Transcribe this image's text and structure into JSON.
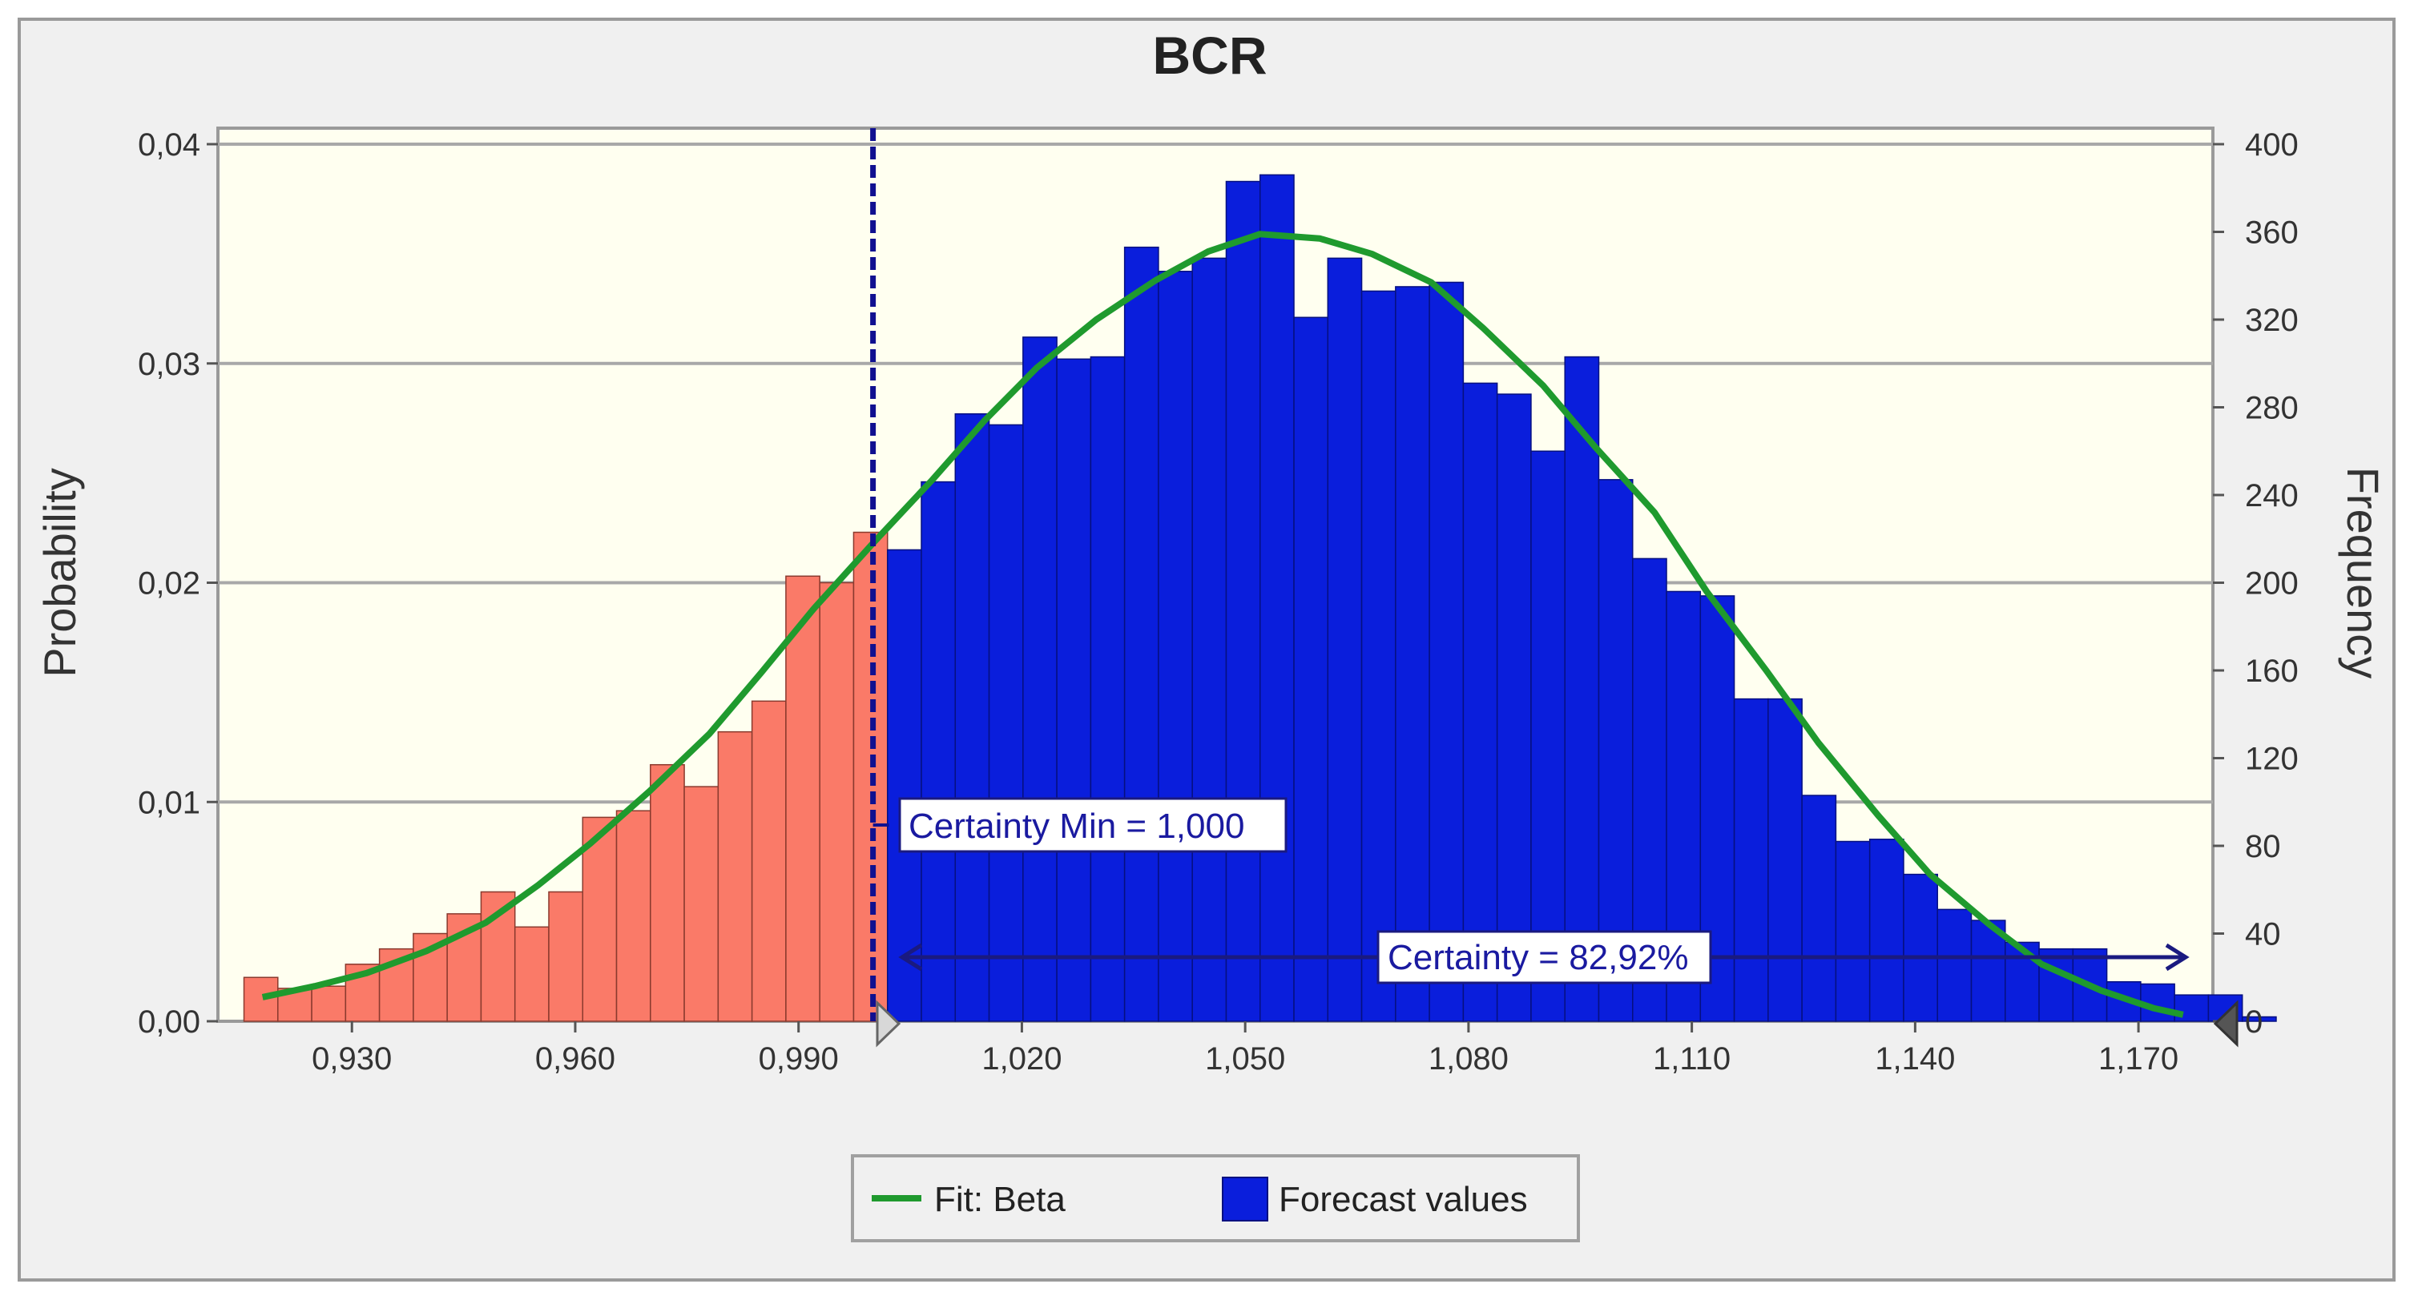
{
  "chart_data": {
    "type": "bar",
    "title": "BCR",
    "ylabel_left": "Probability",
    "ylabel_right": "Frequency",
    "xlim": [
      0.912,
      1.18
    ],
    "ylim_left": [
      0,
      0.04
    ],
    "ylim_right": [
      0,
      400
    ],
    "x_ticks": [
      0.93,
      0.96,
      0.99,
      1.02,
      1.05,
      1.08,
      1.11,
      1.14,
      1.17
    ],
    "x_tick_labels": [
      "0,930",
      "0,960",
      "0,990",
      "1,020",
      "1,050",
      "1,080",
      "1,110",
      "1,140",
      "1,170"
    ],
    "y_left_ticks": [
      0,
      0.01,
      0.02,
      0.03,
      0.04
    ],
    "y_left_tick_labels": [
      "0,00",
      "0,01",
      "0,02",
      "0,03",
      "0,04"
    ],
    "y_right_ticks": [
      0,
      40,
      80,
      120,
      160,
      200,
      240,
      280,
      320,
      360,
      400
    ],
    "y_right_tick_labels": [
      "0",
      "40",
      "80",
      "120",
      "160",
      "200",
      "240",
      "280",
      "320",
      "360",
      "400"
    ],
    "grid": "horizontal",
    "bin_start": 0.9155,
    "bin_width": 0.00455,
    "frequencies": [
      20,
      15,
      16,
      26,
      33,
      40,
      49,
      59,
      43,
      59,
      93,
      96,
      117,
      107,
      132,
      146,
      203,
      200,
      223,
      215,
      246,
      277,
      272,
      312,
      302,
      303,
      353,
      342,
      348,
      383,
      386,
      321,
      348,
      333,
      335,
      337,
      291,
      286,
      260,
      303,
      247,
      211,
      196,
      194,
      147,
      147,
      103,
      82,
      83,
      67,
      51,
      46,
      36,
      33,
      33,
      18,
      17,
      12,
      12,
      2
    ],
    "certainty_min": 1.0,
    "cut_color_below": "#fa7a68",
    "cut_color_above": "#0a1edc",
    "fit_color": "#1f9a2e",
    "fit_peak_frequency": 359,
    "fit_curve": [
      [
        0.918,
        11
      ],
      [
        0.925,
        16
      ],
      [
        0.932,
        22
      ],
      [
        0.94,
        32
      ],
      [
        0.948,
        45
      ],
      [
        0.955,
        62
      ],
      [
        0.962,
        81
      ],
      [
        0.97,
        105
      ],
      [
        0.978,
        131
      ],
      [
        0.985,
        159
      ],
      [
        0.992,
        188
      ],
      [
        1.0,
        218
      ],
      [
        1.008,
        247
      ],
      [
        1.015,
        274
      ],
      [
        1.022,
        298
      ],
      [
        1.03,
        320
      ],
      [
        1.038,
        338
      ],
      [
        1.045,
        351
      ],
      [
        1.052,
        359
      ],
      [
        1.06,
        357
      ],
      [
        1.067,
        350
      ],
      [
        1.075,
        337
      ],
      [
        1.082,
        316
      ],
      [
        1.09,
        290
      ],
      [
        1.097,
        262
      ],
      [
        1.105,
        232
      ],
      [
        1.112,
        196
      ],
      [
        1.12,
        160
      ],
      [
        1.127,
        127
      ],
      [
        1.135,
        94
      ],
      [
        1.142,
        67
      ],
      [
        1.15,
        44
      ],
      [
        1.157,
        26
      ],
      [
        1.165,
        14
      ],
      [
        1.172,
        6
      ],
      [
        1.176,
        3
      ]
    ],
    "annotations": {
      "certainty_min_label": "Certainty Min = 1,000",
      "certainty_label": "Certainty = 82,92%"
    },
    "legend": {
      "placement": "bottom-center",
      "fit_label": "Fit: Beta",
      "forecast_label": "Forecast values"
    }
  }
}
